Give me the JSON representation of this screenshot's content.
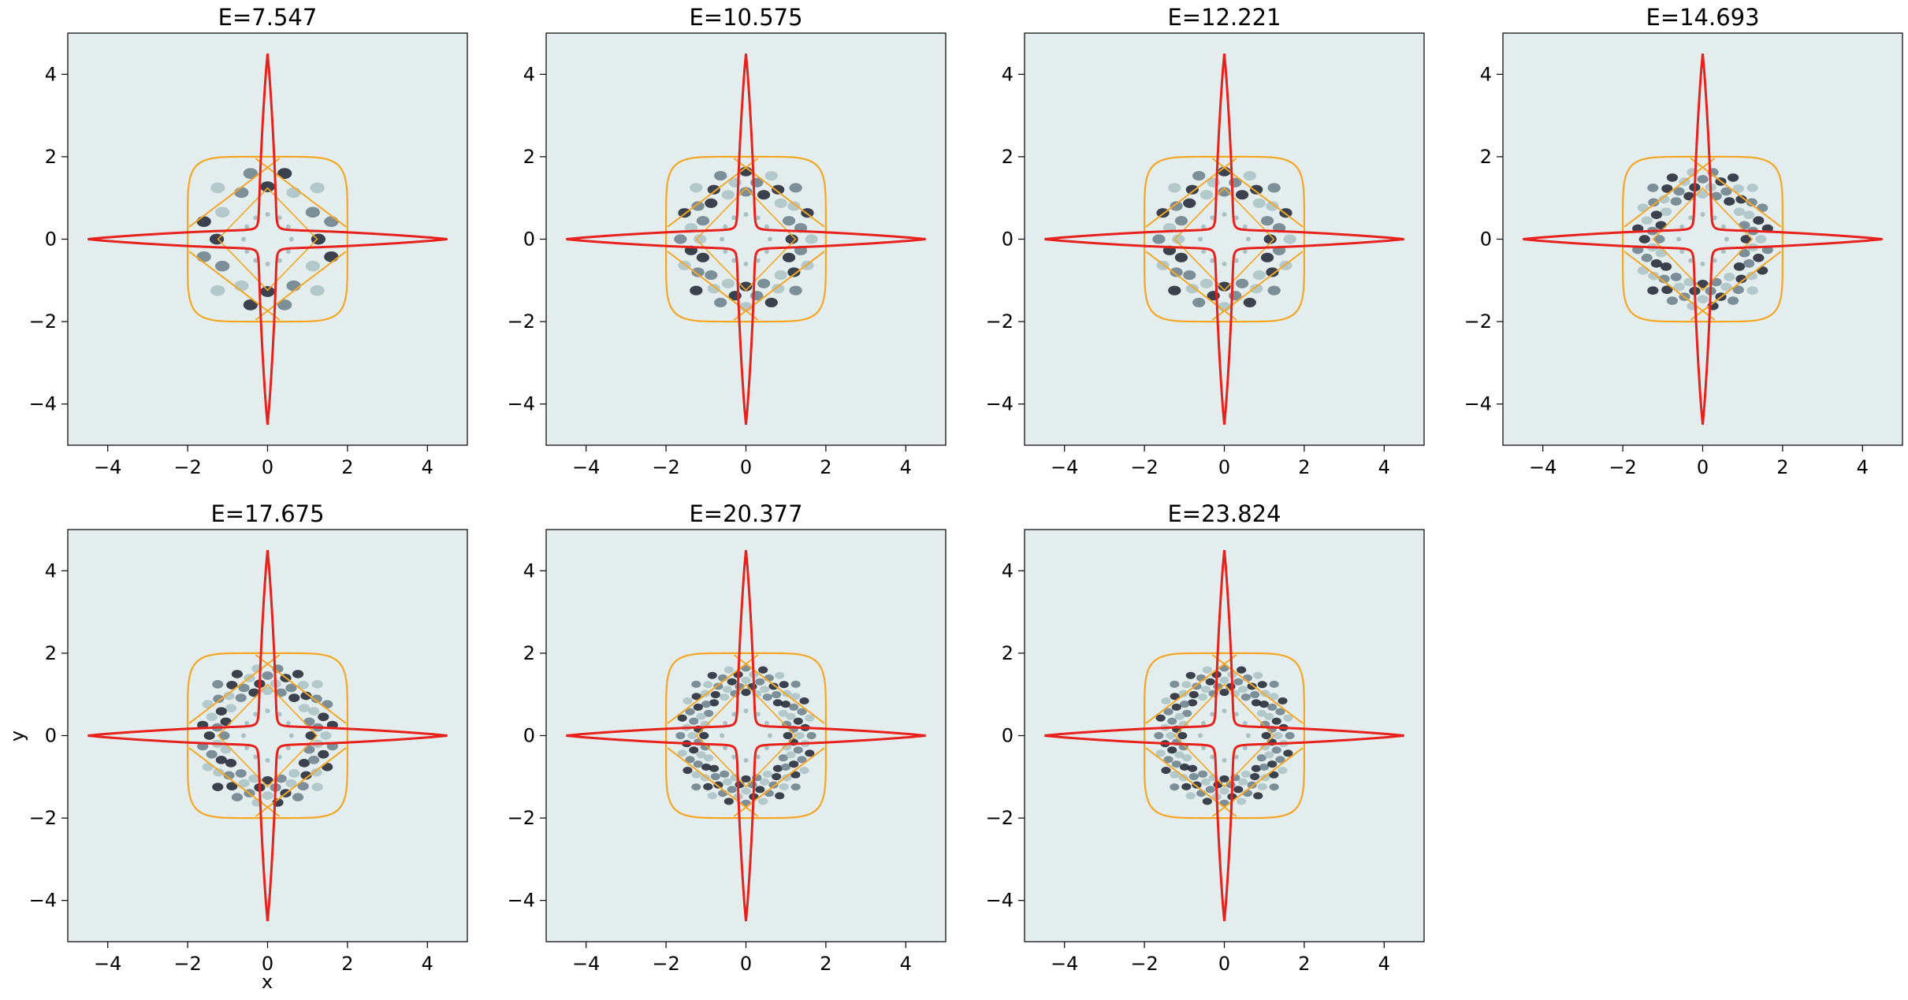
{
  "figure": {
    "xlabel": "x",
    "ylabel": "y"
  },
  "colors": {
    "background": "#e3eded",
    "potential_contour": "#e8211c",
    "orbit": "#f5a623",
    "density_dark": "#1f2330",
    "density_mid": "#6a7d88",
    "density_light": "#a9c1c3"
  },
  "chart_data": [
    {
      "type": "contour",
      "title": "E=7.547",
      "xlim": [
        -5,
        5
      ],
      "ylim": [
        -5,
        5
      ],
      "xticks": [
        -4,
        -2,
        0,
        2,
        4
      ],
      "yticks": [
        -4,
        -2,
        0,
        2,
        4
      ],
      "xtick_labels": [
        "−4",
        "−2",
        "0",
        "2",
        "4"
      ],
      "ytick_labels": [
        "−4",
        "−2",
        "0",
        "2",
        "4"
      ],
      "potential_extent": 4.5,
      "orbit_extent": 2.0,
      "density_bands": 2
    },
    {
      "type": "contour",
      "title": "E=10.575",
      "xlim": [
        -5,
        5
      ],
      "ylim": [
        -5,
        5
      ],
      "xticks": [
        -4,
        -2,
        0,
        2,
        4
      ],
      "yticks": [
        -4,
        -2,
        0,
        2,
        4
      ],
      "xtick_labels": [
        "−4",
        "−2",
        "0",
        "2",
        "4"
      ],
      "ytick_labels": [
        "−4",
        "−2",
        "0",
        "2",
        "4"
      ],
      "potential_extent": 4.5,
      "orbit_extent": 2.0,
      "density_bands": 3
    },
    {
      "type": "contour",
      "title": "E=12.221",
      "xlim": [
        -5,
        5
      ],
      "ylim": [
        -5,
        5
      ],
      "xticks": [
        -4,
        -2,
        0,
        2,
        4
      ],
      "yticks": [
        -4,
        -2,
        0,
        2,
        4
      ],
      "xtick_labels": [
        "−4",
        "−2",
        "0",
        "2",
        "4"
      ],
      "ytick_labels": [
        "−4",
        "−2",
        "0",
        "2",
        "4"
      ],
      "potential_extent": 4.5,
      "orbit_extent": 2.0,
      "density_bands": 3
    },
    {
      "type": "contour",
      "title": "E=14.693",
      "xlim": [
        -5,
        5
      ],
      "ylim": [
        -5,
        5
      ],
      "xticks": [
        -4,
        -2,
        0,
        2,
        4
      ],
      "yticks": [
        -4,
        -2,
        0,
        2,
        4
      ],
      "xtick_labels": [
        "−4",
        "−2",
        "0",
        "2",
        "4"
      ],
      "ytick_labels": [
        "−4",
        "−2",
        "0",
        "2",
        "4"
      ],
      "potential_extent": 4.5,
      "orbit_extent": 2.0,
      "density_bands": 4
    },
    {
      "type": "contour",
      "title": "E=17.675",
      "xlim": [
        -5,
        5
      ],
      "ylim": [
        -5,
        5
      ],
      "xticks": [
        -4,
        -2,
        0,
        2,
        4
      ],
      "yticks": [
        -4,
        -2,
        0,
        2,
        4
      ],
      "xtick_labels": [
        "−4",
        "−2",
        "0",
        "2",
        "4"
      ],
      "ytick_labels": [
        "−4",
        "−2",
        "0",
        "2",
        "4"
      ],
      "potential_extent": 4.5,
      "orbit_extent": 2.0,
      "density_bands": 4
    },
    {
      "type": "contour",
      "title": "E=20.377",
      "xlim": [
        -5,
        5
      ],
      "ylim": [
        -5,
        5
      ],
      "xticks": [
        -4,
        -2,
        0,
        2,
        4
      ],
      "yticks": [
        -4,
        -2,
        0,
        2,
        4
      ],
      "xtick_labels": [
        "−4",
        "−2",
        "0",
        "2",
        "4"
      ],
      "ytick_labels": [
        "−4",
        "−2",
        "0",
        "2",
        "4"
      ],
      "potential_extent": 4.5,
      "orbit_extent": 2.0,
      "density_bands": 5
    },
    {
      "type": "contour",
      "title": "E=23.824",
      "xlim": [
        -5,
        5
      ],
      "ylim": [
        -5,
        5
      ],
      "xticks": [
        -4,
        -2,
        0,
        2,
        4
      ],
      "yticks": [
        -4,
        -2,
        0,
        2,
        4
      ],
      "xtick_labels": [
        "−4",
        "−2",
        "0",
        "2",
        "4"
      ],
      "ytick_labels": [
        "−4",
        "−2",
        "0",
        "2",
        "4"
      ],
      "potential_extent": 4.5,
      "orbit_extent": 2.0,
      "density_bands": 5
    }
  ]
}
